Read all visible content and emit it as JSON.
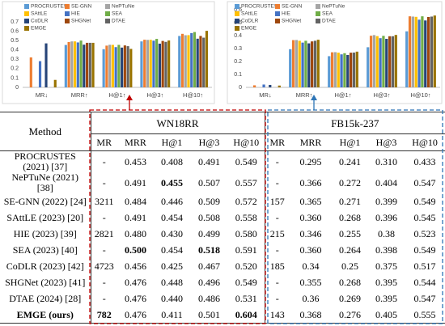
{
  "chart_data": [
    {
      "type": "bar",
      "legend": "top",
      "categories": [
        "MR↓",
        "MRR↑",
        "H@1↑",
        "H@3↑",
        "H@10↑"
      ],
      "ylim": [
        0,
        0.7
      ],
      "yticks": [
        0,
        0.1,
        0.2,
        0.3,
        0.4,
        0.5,
        0.6,
        0.7
      ],
      "series": [
        {
          "name": "PROCRUSTES",
          "color": "#5b9bd5",
          "values": [
            null,
            0.453,
            0.408,
            0.491,
            0.549
          ]
        },
        {
          "name": "SE-GNN",
          "color": "#ed7d31",
          "values": [
            0.32,
            0.484,
            0.446,
            0.509,
            0.572
          ]
        },
        {
          "name": "NePTuNe",
          "color": "#a5a5a5",
          "values": [
            null,
            0.491,
            0.455,
            0.507,
            0.557
          ]
        },
        {
          "name": "SAttLE",
          "color": "#ffc000",
          "values": [
            null,
            0.491,
            0.454,
            0.508,
            0.558
          ]
        },
        {
          "name": "HIE",
          "color": "#4472c4",
          "values": [
            0.28,
            0.48,
            0.43,
            0.499,
            0.58
          ]
        },
        {
          "name": "SEA",
          "color": "#70ad47",
          "values": [
            null,
            0.5,
            0.454,
            0.518,
            0.591
          ]
        },
        {
          "name": "CoDLR",
          "color": "#264478",
          "values": [
            0.47,
            0.456,
            0.425,
            0.467,
            0.52
          ]
        },
        {
          "name": "SHGNet",
          "color": "#9e480e",
          "values": [
            null,
            0.476,
            0.448,
            0.496,
            0.549
          ]
        },
        {
          "name": "DTAE",
          "color": "#636363",
          "values": [
            null,
            0.476,
            0.44,
            0.486,
            0.531
          ]
        },
        {
          "name": "EMGE",
          "color": "#997300",
          "values": [
            0.08,
            0.476,
            0.411,
            0.501,
            0.604
          ]
        }
      ]
    },
    {
      "type": "bar",
      "legend": "top",
      "categories": [
        "MR↓",
        "MRR↑",
        "H@1↑",
        "H@3↑",
        "H@10↑"
      ],
      "ylim": [
        0,
        0.6
      ],
      "yticks": [
        0,
        0.1,
        0.2,
        0.3,
        0.4,
        0.5,
        0.6
      ],
      "series": [
        {
          "name": "PROCRUSTES",
          "color": "#5b9bd5",
          "values": [
            null,
            0.295,
            0.241,
            0.31,
            0.433
          ]
        },
        {
          "name": "SE-GNN",
          "color": "#ed7d31",
          "values": [
            0.016,
            0.365,
            0.271,
            0.399,
            0.549
          ]
        },
        {
          "name": "NePTuNe",
          "color": "#a5a5a5",
          "values": [
            null,
            0.366,
            0.272,
            0.404,
            0.547
          ]
        },
        {
          "name": "SAttLE",
          "color": "#ffc000",
          "values": [
            null,
            0.36,
            0.268,
            0.396,
            0.545
          ]
        },
        {
          "name": "HIE",
          "color": "#4472c4",
          "values": [
            0.022,
            0.346,
            0.255,
            0.38,
            0.523
          ]
        },
        {
          "name": "SEA",
          "color": "#70ad47",
          "values": [
            null,
            0.36,
            0.264,
            0.398,
            0.549
          ]
        },
        {
          "name": "CoDLR",
          "color": "#264478",
          "values": [
            0.019,
            0.34,
            0.25,
            0.375,
            0.517
          ]
        },
        {
          "name": "SHGNet",
          "color": "#9e480e",
          "values": [
            null,
            0.355,
            0.268,
            0.395,
            0.544
          ]
        },
        {
          "name": "DTAE",
          "color": "#636363",
          "values": [
            null,
            0.36,
            0.269,
            0.395,
            0.547
          ]
        },
        {
          "name": "EMGE",
          "color": "#997300",
          "values": [
            0.014,
            0.368,
            0.276,
            0.405,
            0.555
          ]
        }
      ]
    }
  ],
  "table": {
    "header": [
      "Method",
      "WN18RR",
      "FB15k-237"
    ],
    "columns": [
      "MR",
      "MRR",
      "H@1",
      "H@3",
      "H@10",
      "MR",
      "MRR",
      "H@1",
      "H@3",
      "H@10"
    ],
    "rows": [
      [
        "PROCRUSTES (2021) [37]",
        "-",
        "0.453",
        "0.408",
        "0.491",
        "0.549",
        "-",
        "0.295",
        "0.241",
        "0.310",
        "0.433"
      ],
      [
        "NePTuNe (2021) [38]",
        "-",
        "0.491",
        "0.455",
        "0.507",
        "0.557",
        "-",
        "0.366",
        "0.272",
        "0.404",
        "0.547"
      ],
      [
        "SE-GNN (2022) [24]",
        "3211",
        "0.484",
        "0.446",
        "0.509",
        "0.572",
        "157",
        "0.365",
        "0.271",
        "0.399",
        "0.549"
      ],
      [
        "SAttLE (2023) [20]",
        "-",
        "0.491",
        "0.454",
        "0.508",
        "0.558",
        "-",
        "0.360",
        "0.268",
        "0.396",
        "0.545"
      ],
      [
        "HIE (2023) [39]",
        "2821",
        "0.480",
        "0.430",
        "0.499",
        "0.580",
        "215",
        "0.346",
        "0.255",
        "0.38",
        "0.523"
      ],
      [
        "SEA (2023) [40]",
        "-",
        "0.500",
        "0.454",
        "0.518",
        "0.591",
        "-",
        "0.360",
        "0.264",
        "0.398",
        "0.549"
      ],
      [
        "CoDLR (2023) [42]",
        "4723",
        "0.456",
        "0.425",
        "0.467",
        "0.520",
        "185",
        "0.34",
        "0.25",
        "0.375",
        "0.517"
      ],
      [
        "SHGNet (2023) [41]",
        "-",
        "0.476",
        "0.448",
        "0.496",
        "0.549",
        "-",
        "0.355",
        "0.268",
        "0.395",
        "0.544"
      ],
      [
        "DTAE (2024) [28]",
        "-",
        "0.476",
        "0.440",
        "0.486",
        "0.531",
        "-",
        "0.36",
        "0.269",
        "0.395",
        "0.547"
      ],
      [
        "EMGE (ours)",
        "782",
        "0.476",
        "0.411",
        "0.501",
        "0.604",
        "143",
        "0.368",
        "0.276",
        "0.405",
        "0.555"
      ]
    ],
    "bold": [
      [
        1,
        3
      ],
      [
        5,
        2
      ],
      [
        5,
        4
      ],
      [
        9,
        0
      ],
      [
        9,
        1
      ],
      [
        9,
        5
      ]
    ]
  }
}
